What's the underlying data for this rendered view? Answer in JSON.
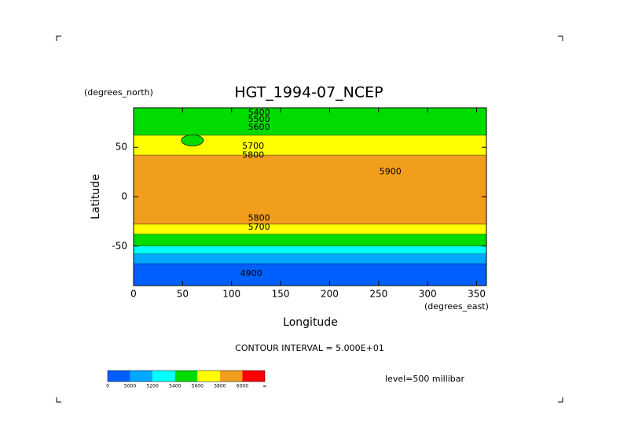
{
  "chart_data": {
    "type": "contour",
    "title": "HGT_1994-07_NCEP",
    "y_units": "(degrees_north)",
    "x_units": "(degrees_east)",
    "y_label": "Latitude",
    "x_label": "Longitude",
    "footer": "CONTOUR INTERVAL = 5.000E+01",
    "level_note": "level=500 millibar",
    "xlim": [
      0,
      360
    ],
    "ylim": [
      -90,
      90
    ],
    "xticks": [
      0,
      50,
      100,
      150,
      200,
      250,
      300,
      350
    ],
    "yticks": [
      -50,
      0,
      50
    ],
    "colorbar": {
      "colors": [
        "#0060ff",
        "#00a8ff",
        "#00ffff",
        "#00dc00",
        "#ffff00",
        "#f29e1d",
        "#ff0000"
      ],
      "ticks": [
        0,
        5000,
        5200,
        5400,
        5600,
        5800,
        6000
      ],
      "end_label": "∞"
    },
    "bands": [
      {
        "lat_max": 90,
        "lat_min": 62,
        "level": 3
      },
      {
        "lat_max": 62,
        "lat_min": 42,
        "level": 4
      },
      {
        "lat_max": 42,
        "lat_min": -28,
        "level": 5
      },
      {
        "lat_max": -28,
        "lat_min": -38,
        "level": 4
      },
      {
        "lat_max": -38,
        "lat_min": -50,
        "level": 3
      },
      {
        "lat_max": -50,
        "lat_min": -58,
        "level": 2
      },
      {
        "lat_max": -58,
        "lat_min": -68,
        "level": 1
      },
      {
        "lat_max": -68,
        "lat_min": -90,
        "level": 0
      }
    ],
    "blobs": [
      {
        "lon": 60,
        "lat": 57,
        "level": 3
      }
    ],
    "contour_labels": [
      {
        "lon": 128,
        "lat": 85,
        "value": 5400
      },
      {
        "lon": 128,
        "lat": 78,
        "value": 5500
      },
      {
        "lon": 128,
        "lat": 70,
        "value": 5600
      },
      {
        "lon": 122,
        "lat": 51,
        "value": 5700
      },
      {
        "lon": 122,
        "lat": 42,
        "value": 5800
      },
      {
        "lon": 262,
        "lat": 25,
        "value": 5900
      },
      {
        "lon": 128,
        "lat": -22,
        "value": 5800
      },
      {
        "lon": 128,
        "lat": -31,
        "value": 5700
      },
      {
        "lon": 120,
        "lat": -78,
        "value": 4900
      }
    ]
  }
}
